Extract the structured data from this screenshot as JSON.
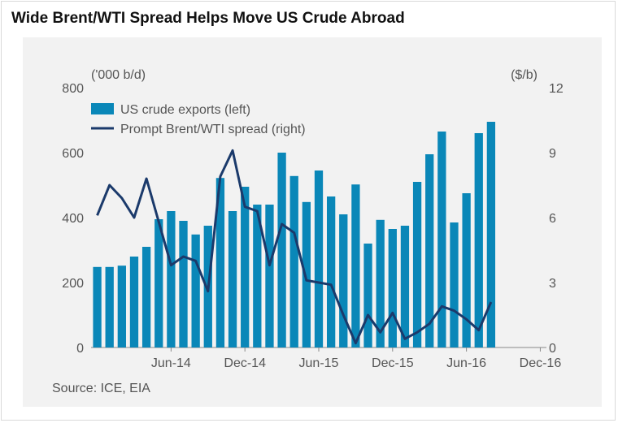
{
  "title": "Wide Brent/WTI Spread Helps Move US Crude Abroad",
  "source": "Source: ICE, EIA",
  "colors": {
    "bar": "#0a87b8",
    "line": "#1b3a6b",
    "panel": "#f2f2f2",
    "axis": "#888888"
  },
  "chart_data": {
    "type": "bar",
    "combo": "bar + line (dual axis)",
    "x": [
      "Dec-13",
      "Jan-14",
      "Feb-14",
      "Mar-14",
      "Apr-14",
      "May-14",
      "Jun-14",
      "Jul-14",
      "Aug-14",
      "Sep-14",
      "Oct-14",
      "Nov-14",
      "Dec-14",
      "Jan-15",
      "Feb-15",
      "Mar-15",
      "Apr-15",
      "May-15",
      "Jun-15",
      "Jul-15",
      "Aug-15",
      "Sep-15",
      "Oct-15",
      "Nov-15",
      "Dec-15",
      "Jan-16",
      "Feb-16",
      "Mar-16",
      "Apr-16",
      "May-16",
      "Jun-16",
      "Jul-16",
      "Aug-16",
      "Sep-16",
      "Oct-16",
      "Nov-16",
      "Dec-16"
    ],
    "x_ticks": [
      "Jun-14",
      "Dec-14",
      "Jun-15",
      "Dec-15",
      "Jun-16",
      "Dec-16"
    ],
    "y_left": {
      "label": "('000 b/d)",
      "ylim": [
        0,
        800
      ],
      "ticks": [
        "0",
        "200",
        "400",
        "600",
        "800"
      ]
    },
    "y_right": {
      "label": "($/b)",
      "ylim": [
        0,
        12
      ],
      "ticks": [
        "0",
        "3",
        "6",
        "9",
        "12"
      ]
    },
    "legend_position": "top-left",
    "series": [
      {
        "name": "US crude exports (left)",
        "type": "bar",
        "axis": "left",
        "values": [
          248,
          248,
          252,
          280,
          310,
          395,
          420,
          390,
          348,
          375,
          522,
          420,
          495,
          440,
          440,
          600,
          528,
          448,
          545,
          465,
          410,
          502,
          320,
          393,
          365,
          375,
          510,
          595,
          665,
          385,
          475,
          660,
          695,
          null,
          null,
          null,
          null
        ]
      },
      {
        "name": "Prompt Brent/WTI spread (right)",
        "type": "line",
        "axis": "right",
        "values": [
          6.1,
          7.5,
          6.9,
          6.0,
          7.8,
          5.8,
          3.8,
          4.2,
          4.0,
          2.6,
          7.9,
          9.1,
          6.5,
          6.3,
          3.8,
          5.7,
          5.3,
          3.1,
          3.0,
          2.9,
          1.5,
          0.2,
          1.5,
          0.7,
          1.6,
          0.4,
          0.7,
          1.1,
          1.9,
          1.7,
          1.3,
          0.8,
          2.1,
          null,
          null,
          null,
          null
        ]
      }
    ]
  }
}
